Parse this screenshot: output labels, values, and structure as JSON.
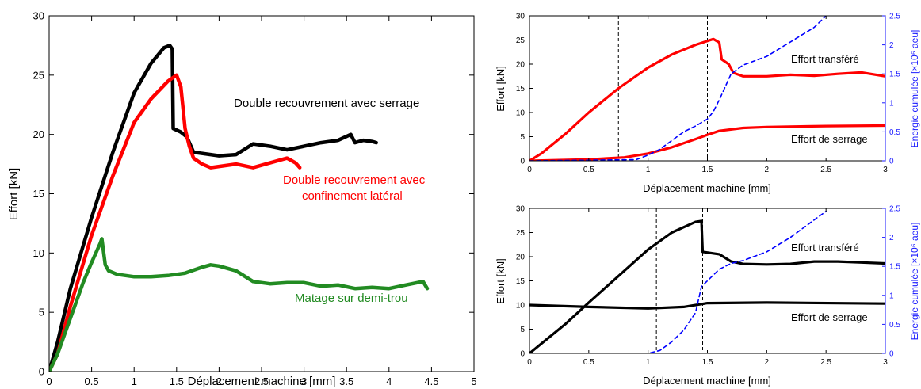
{
  "chart_data": [
    {
      "type": "line",
      "xlabel": "Déplacement machine [mm]",
      "ylabel": "Effort [kN]",
      "xlim": [
        0,
        5
      ],
      "ylim": [
        0,
        30
      ],
      "xticks": [
        "0",
        "0.5",
        "1",
        "1.5",
        "2",
        "2.5",
        "3",
        "3.5",
        "4",
        "4.5",
        "5"
      ],
      "yticks": [
        "0",
        "5",
        "10",
        "15",
        "20",
        "25",
        "30"
      ],
      "grid": false,
      "series": [
        {
          "name": "Double recouvrement avec serrage",
          "color": "#000000",
          "x": [
            0.0,
            0.1,
            0.25,
            0.5,
            0.75,
            1.0,
            1.2,
            1.35,
            1.42,
            1.45,
            1.46,
            1.55,
            1.62,
            1.7,
            1.8,
            2.0,
            2.2,
            2.4,
            2.6,
            2.8,
            3.0,
            3.2,
            3.4,
            3.55,
            3.6,
            3.7,
            3.8,
            3.85
          ],
          "y": [
            0.0,
            2.5,
            7.0,
            13.0,
            18.5,
            23.5,
            26.0,
            27.3,
            27.5,
            27.2,
            20.5,
            20.2,
            19.8,
            18.5,
            18.4,
            18.2,
            18.3,
            19.2,
            19.0,
            18.7,
            19.0,
            19.3,
            19.5,
            20.0,
            19.3,
            19.5,
            19.4,
            19.3
          ]
        },
        {
          "name": "Double recouvrement avec confinement latéral",
          "color": "#ff0000",
          "x": [
            0.0,
            0.1,
            0.25,
            0.5,
            0.75,
            1.0,
            1.2,
            1.4,
            1.5,
            1.55,
            1.6,
            1.65,
            1.7,
            1.8,
            1.9,
            2.0,
            2.2,
            2.4,
            2.6,
            2.8,
            2.9,
            2.95
          ],
          "y": [
            0.0,
            1.5,
            5.5,
            11.5,
            16.5,
            21.0,
            23.0,
            24.5,
            25.0,
            24.0,
            20.5,
            19.0,
            18.0,
            17.5,
            17.2,
            17.3,
            17.5,
            17.2,
            17.6,
            18.0,
            17.6,
            17.2
          ]
        },
        {
          "name": "Matage sur demi-trou",
          "color": "#228b22",
          "x": [
            0.0,
            0.1,
            0.2,
            0.3,
            0.4,
            0.5,
            0.6,
            0.62,
            0.66,
            0.7,
            0.8,
            1.0,
            1.2,
            1.4,
            1.6,
            1.8,
            1.9,
            2.0,
            2.2,
            2.4,
            2.6,
            2.8,
            3.0,
            3.2,
            3.4,
            3.6,
            3.8,
            4.0,
            4.2,
            4.4,
            4.45
          ],
          "y": [
            0.0,
            1.5,
            3.5,
            5.5,
            7.5,
            9.2,
            10.8,
            11.2,
            9.0,
            8.5,
            8.2,
            8.0,
            8.0,
            8.1,
            8.3,
            8.8,
            9.0,
            8.9,
            8.5,
            7.6,
            7.4,
            7.5,
            7.5,
            7.2,
            7.3,
            7.0,
            7.1,
            7.0,
            7.3,
            7.6,
            7.0
          ]
        }
      ],
      "annotations": [
        {
          "text": "Double recouvrement avec serrage",
          "color": "#000000"
        },
        {
          "text": "Double recouvrement avec",
          "color": "#ff0000"
        },
        {
          "text": "confinement latéral",
          "color": "#ff0000"
        },
        {
          "text": "Matage sur demi-trou",
          "color": "#228b22"
        }
      ]
    },
    {
      "type": "line",
      "xlabel": "Déplacement machine [mm]",
      "ylabel": "Effort [kN]",
      "ylabel_right": "Energie cumulée [×10⁶ aeu]",
      "xlim": [
        0,
        3
      ],
      "ylim": [
        0,
        30
      ],
      "ylim_right": [
        0,
        2.5
      ],
      "xticks": [
        "0",
        "0.5",
        "1",
        "1.5",
        "2",
        "2.5",
        "3"
      ],
      "yticks": [
        "0",
        "5",
        "10",
        "15",
        "20",
        "25",
        "30"
      ],
      "yticks_right": [
        "0",
        "0.5",
        "1",
        "1.5",
        "2",
        "2.5"
      ],
      "vlines": [
        0.75,
        1.5
      ],
      "series": [
        {
          "name": "Effort transféré",
          "axis": "left",
          "color": "#ff0000",
          "x": [
            0.0,
            0.1,
            0.3,
            0.5,
            0.75,
            1.0,
            1.2,
            1.4,
            1.5,
            1.55,
            1.6,
            1.62,
            1.68,
            1.72,
            1.8,
            2.0,
            2.2,
            2.4,
            2.6,
            2.8,
            3.0
          ],
          "y": [
            0.0,
            1.5,
            5.5,
            10.0,
            15.0,
            19.3,
            22.0,
            24.0,
            24.8,
            25.2,
            24.5,
            21.0,
            20.0,
            18.2,
            17.5,
            17.5,
            17.8,
            17.6,
            18.0,
            18.3,
            17.5
          ]
        },
        {
          "name": "Effort de serrage",
          "axis": "left",
          "color": "#ff0000",
          "x": [
            0.0,
            0.5,
            0.8,
            1.0,
            1.2,
            1.4,
            1.5,
            1.6,
            1.8,
            2.0,
            2.5,
            3.0
          ],
          "y": [
            0.0,
            0.3,
            0.7,
            1.5,
            2.8,
            4.5,
            5.4,
            6.2,
            6.8,
            7.0,
            7.2,
            7.3
          ]
        },
        {
          "name": "Energie cumulée",
          "axis": "right",
          "color": "#0000ff",
          "dashed": true,
          "x": [
            0.0,
            0.9,
            1.0,
            1.1,
            1.2,
            1.3,
            1.4,
            1.5,
            1.55,
            1.6,
            1.7,
            1.8,
            2.0,
            2.2,
            2.4,
            2.5
          ],
          "y": [
            0.0,
            0.02,
            0.1,
            0.2,
            0.35,
            0.5,
            0.6,
            0.72,
            0.85,
            1.05,
            1.5,
            1.65,
            1.8,
            2.05,
            2.3,
            2.5
          ]
        }
      ],
      "annotations": [
        {
          "text": "Effort transféré",
          "color": "#000000"
        },
        {
          "text": "Effort de serrage",
          "color": "#000000"
        }
      ]
    },
    {
      "type": "line",
      "xlabel": "Déplacement machine [mm]",
      "ylabel": "Effort [kN]",
      "ylabel_right": "Energie cumulée [×10⁶ aeu]",
      "xlim": [
        0,
        3
      ],
      "ylim": [
        0,
        30
      ],
      "ylim_right": [
        0,
        2.5
      ],
      "xticks": [
        "0",
        "0.5",
        "1",
        "1.5",
        "2",
        "2.5",
        "3"
      ],
      "yticks": [
        "0",
        "5",
        "10",
        "15",
        "20",
        "25",
        "30"
      ],
      "yticks_right": [
        "0",
        "0.5",
        "1",
        "1.5",
        "2",
        "2.5"
      ],
      "vlines": [
        1.07,
        1.46
      ],
      "series": [
        {
          "name": "Effort transféré",
          "axis": "left",
          "color": "#000000",
          "x": [
            0.0,
            0.1,
            0.3,
            0.5,
            0.75,
            1.0,
            1.2,
            1.4,
            1.45,
            1.46,
            1.6,
            1.7,
            1.8,
            2.0,
            2.2,
            2.4,
            2.6,
            2.8,
            3.0
          ],
          "y": [
            0.0,
            2.0,
            6.0,
            10.5,
            16.0,
            21.5,
            25.0,
            27.2,
            27.4,
            21.0,
            20.5,
            19.0,
            18.5,
            18.4,
            18.5,
            19.0,
            19.0,
            18.8,
            18.6
          ]
        },
        {
          "name": "Effort de serrage",
          "axis": "left",
          "color": "#000000",
          "x": [
            0.0,
            0.5,
            1.0,
            1.3,
            1.5,
            2.0,
            3.0
          ],
          "y": [
            10.0,
            9.6,
            9.3,
            9.6,
            10.4,
            10.5,
            10.3
          ]
        },
        {
          "name": "Energie cumulée",
          "axis": "right",
          "color": "#0000ff",
          "dashed": true,
          "x": [
            0.3,
            1.0,
            1.1,
            1.2,
            1.3,
            1.4,
            1.45,
            1.5,
            1.6,
            1.7,
            1.8,
            2.0,
            2.2,
            2.4,
            2.5
          ],
          "y": [
            0.0,
            0.0,
            0.05,
            0.2,
            0.4,
            0.7,
            1.15,
            1.25,
            1.45,
            1.55,
            1.6,
            1.75,
            2.0,
            2.3,
            2.45
          ]
        }
      ],
      "annotations": [
        {
          "text": "Effort transféré",
          "color": "#000000"
        },
        {
          "text": "Effort de serrage",
          "color": "#000000"
        }
      ]
    }
  ]
}
